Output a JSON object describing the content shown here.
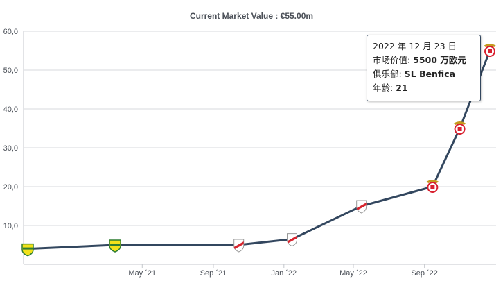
{
  "chart_data": {
    "type": "line",
    "title": "Current Market Value : €55.00m",
    "ylim": [
      0,
      60
    ],
    "yticks": [
      "10,0",
      "20,0",
      "30,0",
      "40,0",
      "50,0",
      "60,0"
    ],
    "x_tick_labels": [
      "May ´21",
      "Sep ´21",
      "Jan ´22",
      "May ´22",
      "Sep ´22"
    ],
    "grid": true,
    "series": [
      {
        "color": "#33475f",
        "points": [
          {
            "date": "2020-10-15",
            "value": 4.0,
            "club": "Defensa y Justicia"
          },
          {
            "date": "2021-03-15",
            "value": 5.0,
            "club": "Defensa y Justicia"
          },
          {
            "date": "2021-10-15",
            "value": 5.0,
            "club": "River Plate"
          },
          {
            "date": "2022-01-15",
            "value": 6.5,
            "club": "River Plate"
          },
          {
            "date": "2022-05-15",
            "value": 15.0,
            "club": "River Plate"
          },
          {
            "date": "2022-09-15",
            "value": 20.0,
            "club": "SL Benfica"
          },
          {
            "date": "2022-11-01",
            "value": 35.0,
            "club": "SL Benfica"
          },
          {
            "date": "2022-12-23",
            "value": 55.0,
            "club": "SL Benfica"
          }
        ]
      }
    ],
    "club_colors": {
      "Defensa y Justicia": "#f2e21a",
      "River Plate": "#d7252f",
      "SL Benfica": "#d8202f"
    }
  },
  "tooltip": {
    "date": "2022 年 12 月 23 日",
    "value_label": "市场价值:",
    "value": "5500 万欧元",
    "club_label": "俱乐部:",
    "club": "SL Benfica",
    "age_label": "年龄:",
    "age": "21"
  }
}
